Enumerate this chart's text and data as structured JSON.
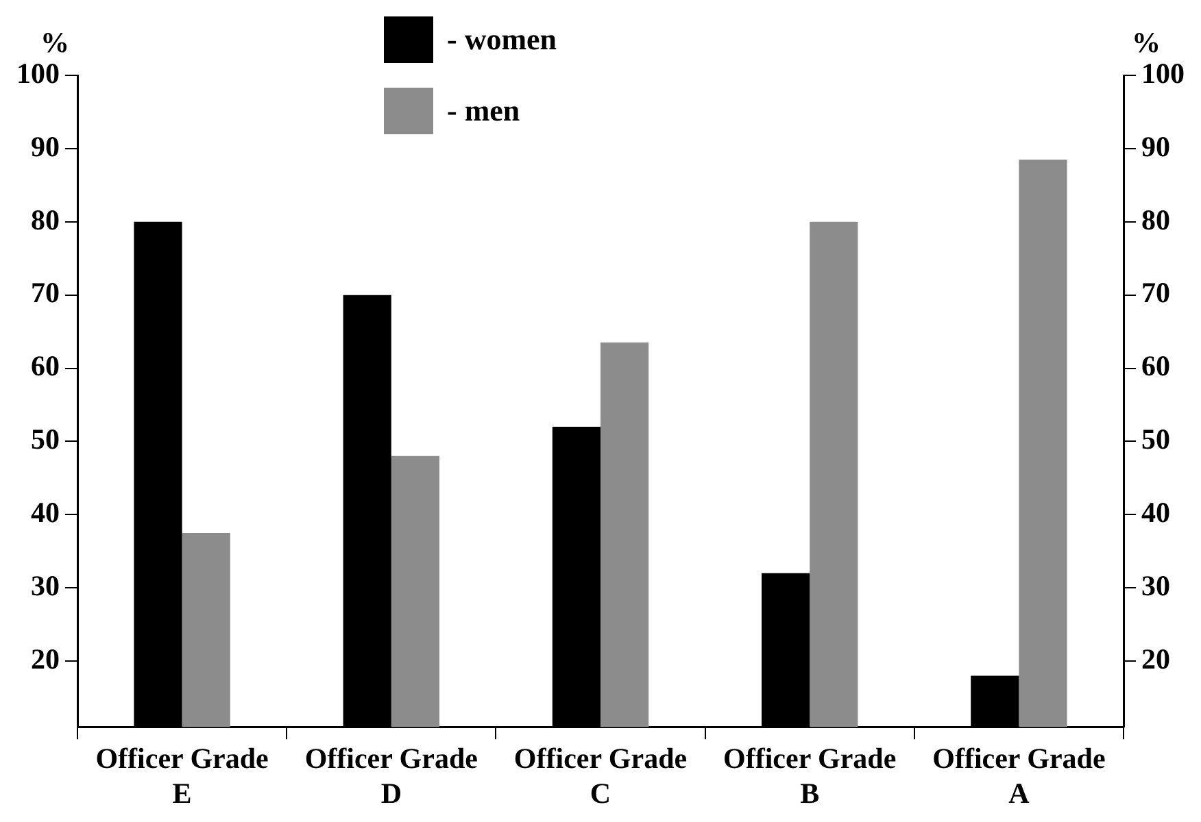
{
  "chart_data": {
    "type": "bar",
    "categories": [
      "Officer Grade E",
      "Officer Grade D",
      "Officer Grade C",
      "Officer Grade B",
      "Officer Grade A"
    ],
    "series": [
      {
        "name": "- women",
        "color": "#000000",
        "values": [
          80,
          70,
          52,
          32,
          18
        ]
      },
      {
        "name": "- men",
        "color": "#8c8c8c",
        "values": [
          37.5,
          48,
          63.5,
          80,
          88.5
        ]
      }
    ],
    "ylabel": "%",
    "y2label": "%",
    "ylim": [
      11,
      100
    ],
    "yticks": [
      20,
      30,
      40,
      50,
      60,
      70,
      80,
      90,
      100
    ],
    "y2lim": [
      11,
      100
    ],
    "y2ticks": [
      20,
      30,
      40,
      50,
      60,
      70,
      80,
      90,
      100
    ],
    "grid": false,
    "legend": "top"
  }
}
